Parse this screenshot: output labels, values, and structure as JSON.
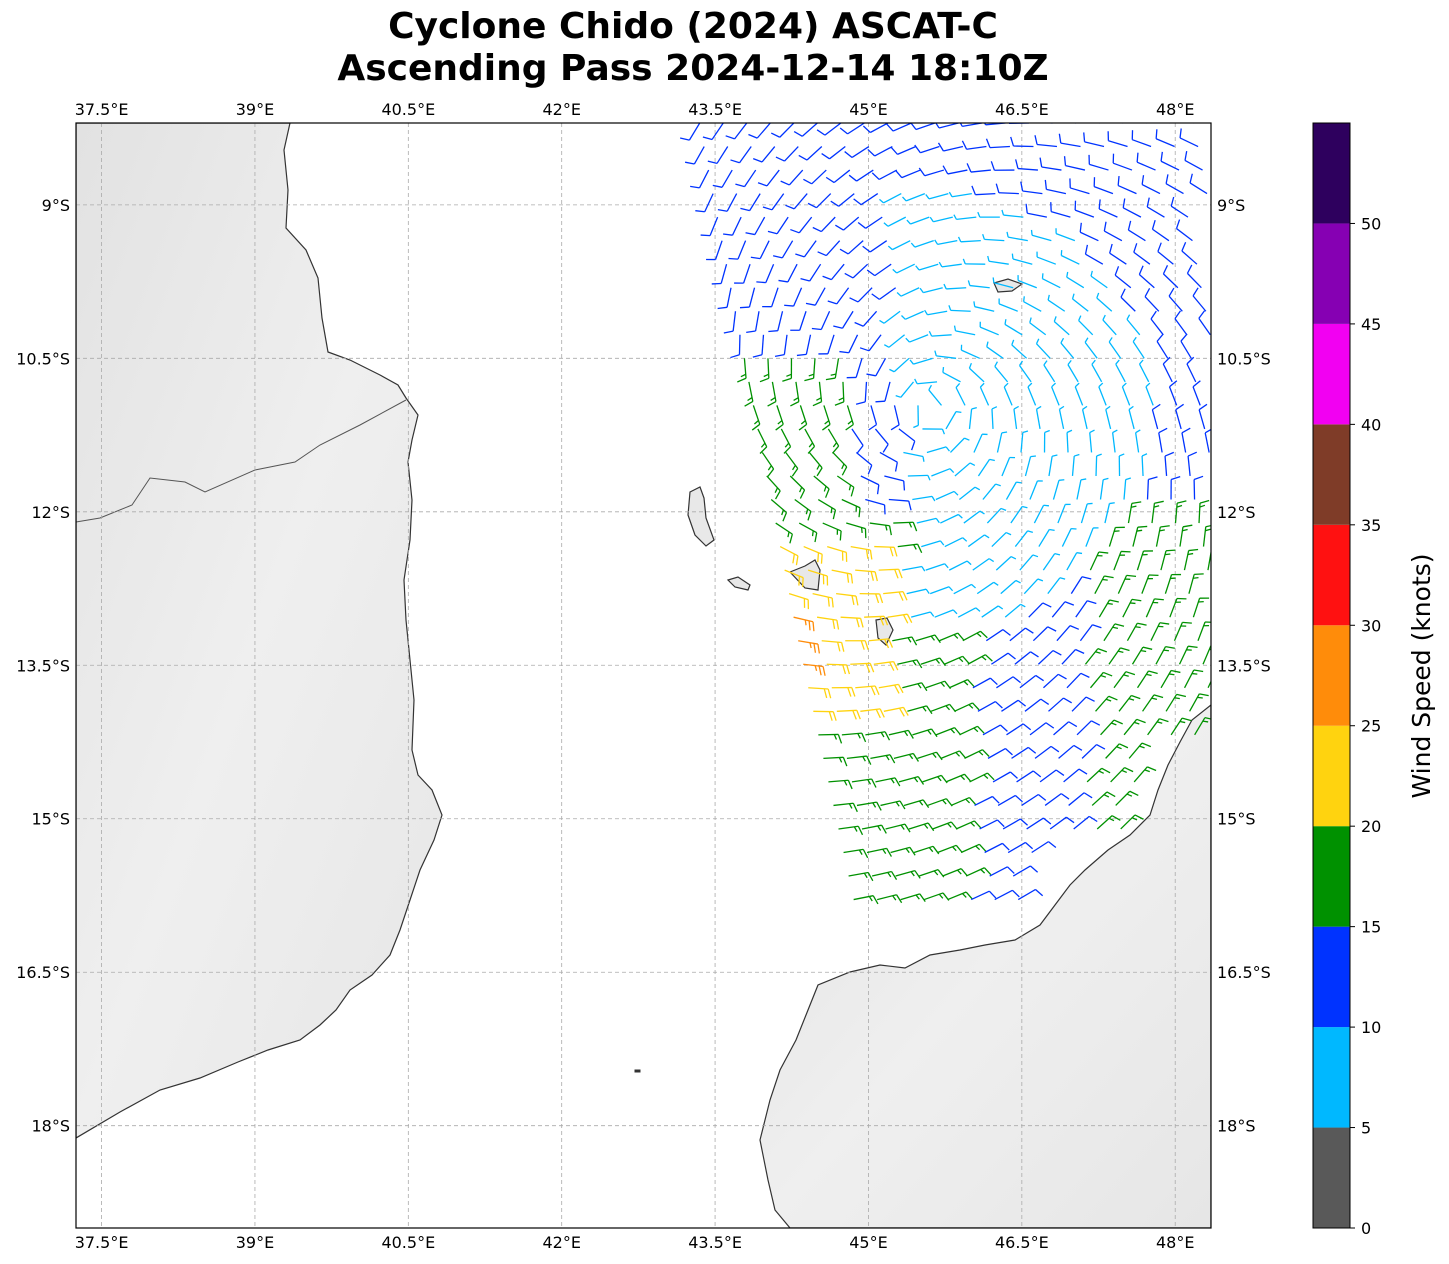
{
  "title": {
    "line1": "Cyclone Chido (2024) ASCAT-C",
    "line2": "Ascending Pass 2024-12-14 18:10Z"
  },
  "map": {
    "lon_range": [
      37.25,
      48.35
    ],
    "lat_range": [
      -19.0,
      -8.2
    ],
    "lon_ticks": [
      37.5,
      39,
      40.5,
      42,
      43.5,
      45,
      46.5,
      48
    ],
    "lon_tick_labels": [
      "37.5°E",
      "39°E",
      "40.5°E",
      "42°E",
      "43.5°E",
      "45°E",
      "46.5°E",
      "48°E"
    ],
    "lat_ticks": [
      -9,
      -10.5,
      -12,
      -13.5,
      -15,
      -16.5,
      -18
    ],
    "lat_tick_labels": [
      "9°S",
      "10.5°S",
      "12°S",
      "13.5°S",
      "15°S",
      "16.5°S",
      "18°S"
    ],
    "gridlines": true,
    "land_color": "#ededed",
    "coast_color": "#333333"
  },
  "colorbar": {
    "label": "Wind Speed (knots)",
    "tick_values": [
      0,
      5,
      10,
      15,
      20,
      25,
      30,
      35,
      40,
      45,
      50
    ],
    "tick_labels": [
      "0",
      "5",
      "10",
      "15",
      "20",
      "25",
      "30",
      "35",
      "40",
      "45",
      "50"
    ],
    "bins": [
      {
        "min": 0,
        "max": 5,
        "color": "#595959"
      },
      {
        "min": 5,
        "max": 10,
        "color": "#00b8ff"
      },
      {
        "min": 10,
        "max": 15,
        "color": "#0033ff"
      },
      {
        "min": 15,
        "max": 20,
        "color": "#009100"
      },
      {
        "min": 20,
        "max": 25,
        "color": "#ffd30f"
      },
      {
        "min": 25,
        "max": 30,
        "color": "#ff8c0a"
      },
      {
        "min": 30,
        "max": 35,
        "color": "#ff1111"
      },
      {
        "min": 35,
        "max": 40,
        "color": "#7f3c28"
      },
      {
        "min": 40,
        "max": 45,
        "color": "#f200f2"
      },
      {
        "min": 45,
        "max": 50,
        "color": "#8600b3"
      },
      {
        "min": 50,
        "max": 55,
        "color": "#2e005e"
      }
    ]
  },
  "wind_field": {
    "swath_west_edge": [
      [
        43.35,
        -8.2
      ],
      [
        44.3,
        -13.2
      ],
      [
        44.9,
        -16.0
      ]
    ],
    "swath_east_edge": [
      48.35
    ],
    "swath_south_edge": -16.0,
    "circulation_center": [
      45.6,
      -11.0
    ],
    "speed_regions": [
      {
        "description_color": "cyan",
        "speed_knots": 8
      },
      {
        "description_color": "blue",
        "speed_knots": 13
      },
      {
        "description_color": "green",
        "speed_knots": 18
      },
      {
        "description_color": "yellow",
        "speed_knots": 22
      },
      {
        "description_color": "orange",
        "speed_knots": 27
      }
    ]
  }
}
